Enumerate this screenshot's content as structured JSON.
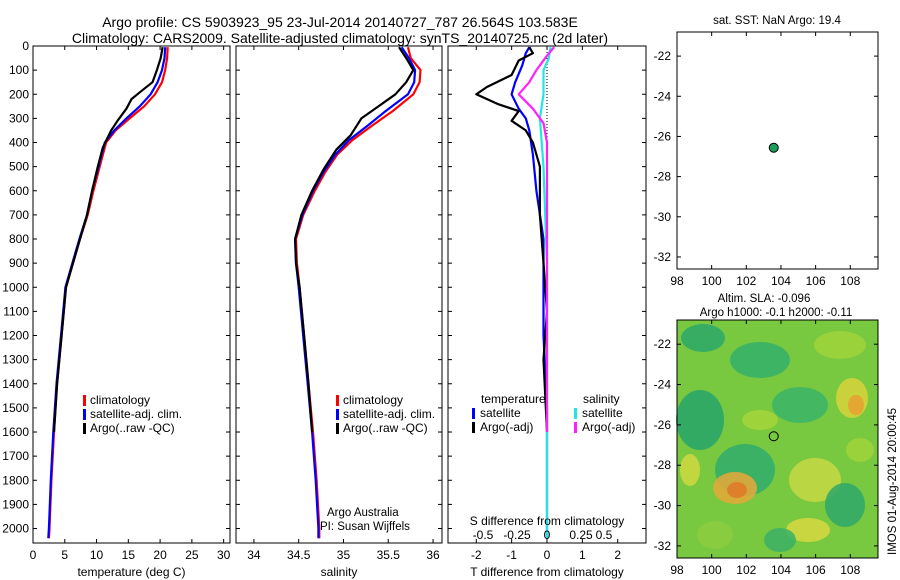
{
  "header": {
    "line1": "Argo profile: CS 5903923_95 23-Jul-2014 20140727_787 26.564S 103.583E",
    "line2": "Climatology: CARS2009. Satellite-adjusted climatology: synTS_20140725.nc (2d later)"
  },
  "map_sst": {
    "title": "sat. SST: NaN Argo: 19.4"
  },
  "map_sla": {
    "title1": "Altim. SLA: -0.096",
    "title2": "Argo h1000: -0.1 h2000: -0.11"
  },
  "footer": {
    "credit": "IMOS 01-Aug-2014 20:00:45",
    "institution": "Argo Australia",
    "pi": "PI: Susan Wijffels"
  },
  "colors": {
    "climatology": "#ff0000",
    "satellite": "#0000ff",
    "argo": "#000000",
    "sal_satellite": "#22e6e6",
    "sal_argo": "#ff20ff",
    "float_marker": "#1b9e5a"
  },
  "chart_data": [
    {
      "type": "line",
      "xlabel": "temperature (deg C)",
      "xlim": [
        0,
        31
      ],
      "ylim": [
        2060,
        0
      ],
      "y_reversed": true,
      "xticks": [
        "0",
        "5",
        "10",
        "15",
        "20",
        "25",
        "30"
      ],
      "yticks": [
        "0",
        "100",
        "200",
        "300",
        "400",
        "500",
        "600",
        "700",
        "800",
        "900",
        "1000",
        "1100",
        "1200",
        "1300",
        "1400",
        "1500",
        "1600",
        "1700",
        "1800",
        "1900",
        "2000"
      ],
      "legend": [
        "climatology",
        "satellite-adj. clim.",
        "Argo(..raw -QC)"
      ],
      "series": [
        {
          "name": "climatology",
          "color": "#ff0000",
          "points": [
            [
              21.2,
              5
            ],
            [
              21.1,
              50
            ],
            [
              20.8,
              100
            ],
            [
              20.3,
              150
            ],
            [
              19.2,
              200
            ],
            [
              17.5,
              250
            ],
            [
              15.2,
              300
            ],
            [
              13.0,
              350
            ],
            [
              11.5,
              400
            ],
            [
              10.5,
              500
            ],
            [
              9.5,
              600
            ],
            [
              8.6,
              700
            ],
            [
              7.4,
              800
            ],
            [
              6.3,
              900
            ],
            [
              5.2,
              1000
            ],
            [
              4.5,
              1200
            ],
            [
              3.8,
              1400
            ],
            [
              3.3,
              1600
            ],
            [
              2.9,
              1800
            ],
            [
              2.6,
              2000
            ],
            [
              2.5,
              2040
            ]
          ]
        },
        {
          "name": "satellite-adj. clim.",
          "color": "#0000ff",
          "points": [
            [
              20.8,
              5
            ],
            [
              20.7,
              50
            ],
            [
              20.3,
              100
            ],
            [
              19.6,
              150
            ],
            [
              18.5,
              200
            ],
            [
              16.8,
              250
            ],
            [
              14.7,
              300
            ],
            [
              12.8,
              350
            ],
            [
              11.3,
              400
            ],
            [
              10.3,
              500
            ],
            [
              9.3,
              600
            ],
            [
              8.5,
              700
            ],
            [
              7.3,
              800
            ],
            [
              6.2,
              900
            ],
            [
              5.1,
              1000
            ],
            [
              4.4,
              1200
            ],
            [
              3.7,
              1400
            ],
            [
              3.2,
              1600
            ],
            [
              2.8,
              1800
            ],
            [
              2.5,
              2000
            ],
            [
              2.4,
              2040
            ]
          ]
        },
        {
          "name": "Argo(..raw -QC)",
          "color": "#000000",
          "points": [
            [
              20.4,
              5
            ],
            [
              20.1,
              50
            ],
            [
              19.5,
              100
            ],
            [
              18.8,
              150
            ],
            [
              16.9,
              190
            ],
            [
              15.5,
              220
            ],
            [
              14.7,
              260
            ],
            [
              13.3,
              310
            ],
            [
              12.3,
              350
            ],
            [
              11.0,
              420
            ],
            [
              10.2,
              500
            ],
            [
              9.3,
              600
            ],
            [
              8.5,
              700
            ],
            [
              7.4,
              800
            ],
            [
              6.3,
              900
            ],
            [
              5.2,
              1000
            ],
            [
              4.5,
              1200
            ],
            [
              3.8,
              1400
            ],
            [
              3.3,
              1600
            ]
          ]
        }
      ]
    },
    {
      "type": "line",
      "xlabel": "salinity",
      "xlim": [
        33.8,
        36.1
      ],
      "ylim": [
        2060,
        0
      ],
      "y_reversed": true,
      "xticks": [
        "34",
        "34.5",
        "35",
        "35.5",
        "36"
      ],
      "legend": [
        "climatology",
        "satellite-adj. clim.",
        "Argo(..raw -QC)"
      ],
      "series": [
        {
          "name": "climatology",
          "color": "#ff0000",
          "points": [
            [
              35.72,
              5
            ],
            [
              35.75,
              50
            ],
            [
              35.86,
              100
            ],
            [
              35.85,
              150
            ],
            [
              35.78,
              200
            ],
            [
              35.55,
              270
            ],
            [
              35.32,
              330
            ],
            [
              35.1,
              390
            ],
            [
              34.93,
              450
            ],
            [
              34.8,
              520
            ],
            [
              34.68,
              600
            ],
            [
              34.55,
              700
            ],
            [
              34.47,
              800
            ],
            [
              34.48,
              900
            ],
            [
              34.51,
              1000
            ],
            [
              34.56,
              1200
            ],
            [
              34.61,
              1400
            ],
            [
              34.66,
              1600
            ],
            [
              34.7,
              1800
            ],
            [
              34.73,
              2000
            ],
            [
              34.73,
              2040
            ]
          ]
        },
        {
          "name": "satellite-adj. clim.",
          "color": "#0000ff",
          "points": [
            [
              35.65,
              5
            ],
            [
              35.73,
              50
            ],
            [
              35.8,
              100
            ],
            [
              35.79,
              150
            ],
            [
              35.72,
              200
            ],
            [
              35.47,
              270
            ],
            [
              35.27,
              330
            ],
            [
              35.06,
              390
            ],
            [
              34.91,
              450
            ],
            [
              34.78,
              520
            ],
            [
              34.66,
              600
            ],
            [
              34.54,
              700
            ],
            [
              34.46,
              800
            ],
            [
              34.47,
              900
            ],
            [
              34.5,
              1000
            ],
            [
              34.55,
              1200
            ],
            [
              34.6,
              1400
            ],
            [
              34.65,
              1600
            ],
            [
              34.69,
              1800
            ],
            [
              34.72,
              2000
            ],
            [
              34.72,
              2040
            ]
          ]
        },
        {
          "name": "Argo(..raw -QC)",
          "color": "#000000",
          "points": [
            [
              35.62,
              5
            ],
            [
              35.7,
              50
            ],
            [
              35.78,
              100
            ],
            [
              35.7,
              150
            ],
            [
              35.58,
              200
            ],
            [
              35.2,
              300
            ],
            [
              35.08,
              370
            ],
            [
              34.92,
              430
            ],
            [
              34.78,
              510
            ],
            [
              34.65,
              600
            ],
            [
              34.53,
              700
            ],
            [
              34.46,
              800
            ],
            [
              34.47,
              900
            ],
            [
              34.51,
              1000
            ],
            [
              34.56,
              1200
            ],
            [
              34.61,
              1400
            ],
            [
              34.65,
              1600
            ]
          ]
        }
      ]
    },
    {
      "type": "line",
      "xlabel": "T difference from climatology",
      "xlabel_top": "S difference from climatology",
      "xlim": [
        -2.8,
        2.8
      ],
      "ylim": [
        2060,
        0
      ],
      "y_reversed": true,
      "xticks": [
        "-2",
        "-1",
        "0",
        "1",
        "2"
      ],
      "xticks_top": [
        "-0.5",
        "-0.25",
        "0",
        "0.25",
        "0.5"
      ],
      "legend": [
        "temperature",
        "satellite",
        "Argo(-adj)",
        "salinity",
        "satellite",
        "Argo(-adj)"
      ],
      "series": [
        {
          "name": "satellite",
          "color": "#0000ff",
          "points": [
            [
              -0.5,
              5
            ],
            [
              -0.6,
              30
            ],
            [
              -0.7,
              80
            ],
            [
              -0.9,
              150
            ],
            [
              -1.0,
              200
            ],
            [
              -0.8,
              260
            ],
            [
              -0.6,
              300
            ],
            [
              -0.5,
              350
            ],
            [
              -0.4,
              450
            ],
            [
              -0.3,
              600
            ],
            [
              -0.1,
              800
            ],
            [
              -0.1,
              1000
            ],
            [
              -0.1,
              1200
            ],
            [
              0,
              1500
            ],
            [
              0,
              2040
            ]
          ]
        },
        {
          "name": "Argo(-adj)",
          "color": "#000000",
          "points": [
            [
              -0.5,
              5
            ],
            [
              -0.4,
              30
            ],
            [
              -0.8,
              60
            ],
            [
              -1.0,
              120
            ],
            [
              -1.7,
              170
            ],
            [
              -2.0,
              200
            ],
            [
              -1.4,
              240
            ],
            [
              -0.8,
              270
            ],
            [
              -1.0,
              310
            ],
            [
              -0.6,
              350
            ],
            [
              -0.4,
              400
            ],
            [
              -0.2,
              500
            ],
            [
              -0.2,
              700
            ],
            [
              -0.1,
              900
            ],
            [
              0,
              1100
            ],
            [
              -0.1,
              1300
            ],
            [
              0,
              1600
            ]
          ]
        },
        {
          "name": "satellite",
          "color": "#22e6e6",
          "points": [
            [
              0.1,
              5
            ],
            [
              0.05,
              50
            ],
            [
              -0.1,
              100
            ],
            [
              -0.1,
              200
            ],
            [
              -0.2,
              300
            ],
            [
              -0.15,
              400
            ],
            [
              -0.1,
              500
            ],
            [
              -0.05,
              700
            ],
            [
              0,
              900
            ],
            [
              0,
              1200
            ],
            [
              0,
              1500
            ],
            [
              0,
              2040
            ]
          ]
        },
        {
          "name": "Argo(-adj)",
          "color": "#ff20ff",
          "points": [
            [
              0.2,
              5
            ],
            [
              0.0,
              40
            ],
            [
              -0.3,
              100
            ],
            [
              -0.5,
              150
            ],
            [
              -0.8,
              200
            ],
            [
              -0.4,
              260
            ],
            [
              -0.1,
              320
            ],
            [
              0,
              400
            ],
            [
              0,
              600
            ],
            [
              0,
              800
            ],
            [
              0,
              1000
            ],
            [
              0,
              1200
            ],
            [
              0,
              1600
            ]
          ]
        }
      ]
    },
    {
      "type": "scatter",
      "title": "sat. SST: NaN Argo: 19.4",
      "xlim": [
        98,
        109.6
      ],
      "ylim": [
        -32.6,
        -20.8
      ],
      "xticks": [
        "98",
        "100",
        "102",
        "104",
        "106",
        "108"
      ],
      "yticks": [
        "-22",
        "-24",
        "-26",
        "-28",
        "-30",
        "-32"
      ],
      "points": [
        [
          103.583,
          -26.564
        ]
      ]
    },
    {
      "type": "heatmap",
      "title": "Altim. SLA: -0.096",
      "subtitle": "Argo h1000: -0.1 h2000: -0.11",
      "xlim": [
        98,
        109.6
      ],
      "ylim": [
        -32.6,
        -20.8
      ],
      "xticks": [
        "98",
        "100",
        "102",
        "104",
        "106",
        "108"
      ],
      "yticks": [
        "-22",
        "-24",
        "-26",
        "-28",
        "-30",
        "-32"
      ],
      "points": [
        [
          103.583,
          -26.564
        ]
      ]
    }
  ]
}
